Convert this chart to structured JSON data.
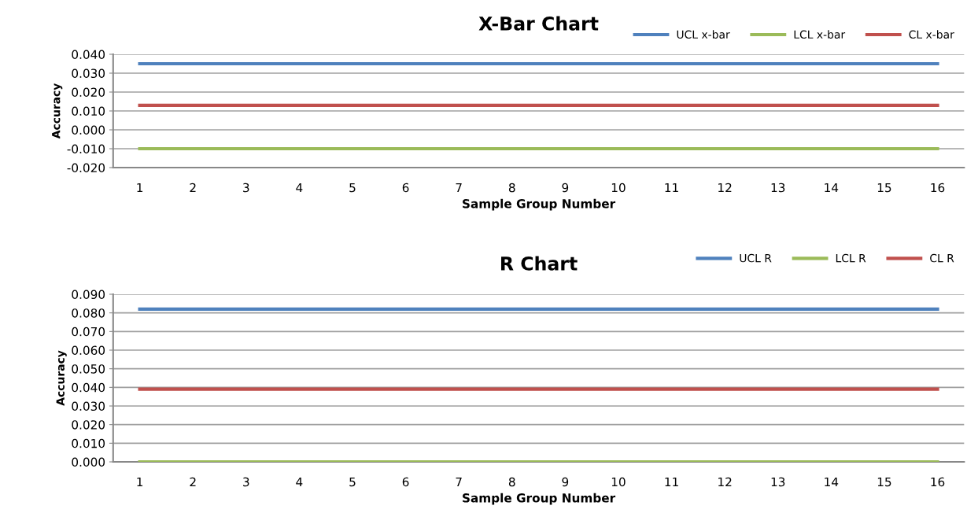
{
  "chart_data": [
    {
      "type": "line",
      "title": "X-Bar Chart",
      "xlabel": "Sample Group Number",
      "ylabel": "Accuracy",
      "categories": [
        "1",
        "2",
        "3",
        "4",
        "5",
        "6",
        "7",
        "8",
        "9",
        "10",
        "11",
        "12",
        "13",
        "14",
        "15",
        "16"
      ],
      "series": [
        {
          "name": "UCL x-bar",
          "color": "#4f81bd",
          "values": [
            0.035,
            0.035,
            0.035,
            0.035,
            0.035,
            0.035,
            0.035,
            0.035,
            0.035,
            0.035,
            0.035,
            0.035,
            0.035,
            0.035,
            0.035,
            0.035
          ]
        },
        {
          "name": "LCL x-bar",
          "color": "#9bbb59",
          "values": [
            -0.01,
            -0.01,
            -0.01,
            -0.01,
            -0.01,
            -0.01,
            -0.01,
            -0.01,
            -0.01,
            -0.01,
            -0.01,
            -0.01,
            -0.01,
            -0.01,
            -0.01,
            -0.01
          ]
        },
        {
          "name": "CL x-bar",
          "color": "#c0504d",
          "values": [
            0.013,
            0.013,
            0.013,
            0.013,
            0.013,
            0.013,
            0.013,
            0.013,
            0.013,
            0.013,
            0.013,
            0.013,
            0.013,
            0.013,
            0.013,
            0.013
          ]
        }
      ],
      "ylim": [
        -0.02,
        0.04
      ],
      "yticks": [
        {
          "value": -0.02,
          "label": "-0.020"
        },
        {
          "value": -0.01,
          "label": "-0.010"
        },
        {
          "value": 0,
          "label": "0.000"
        },
        {
          "value": 0.01,
          "label": "0.010"
        },
        {
          "value": 0.02,
          "label": "0.020"
        },
        {
          "value": 0.03,
          "label": "0.030"
        },
        {
          "value": 0.04,
          "label": "0.040"
        }
      ],
      "grid": "y",
      "legend": "top right",
      "marker": "none",
      "line_style": "solid"
    },
    {
      "type": "line",
      "title": "R Chart",
      "xlabel": "Sample Group Number",
      "ylabel": "Accuracy",
      "categories": [
        "1",
        "2",
        "3",
        "4",
        "5",
        "6",
        "7",
        "8",
        "9",
        "10",
        "11",
        "12",
        "13",
        "14",
        "15",
        "16"
      ],
      "series": [
        {
          "name": "UCL R",
          "color": "#4f81bd",
          "values": [
            0.082,
            0.082,
            0.082,
            0.082,
            0.082,
            0.082,
            0.082,
            0.082,
            0.082,
            0.082,
            0.082,
            0.082,
            0.082,
            0.082,
            0.082,
            0.082
          ]
        },
        {
          "name": "LCL R",
          "color": "#9bbb59",
          "values": [
            0,
            0,
            0,
            0,
            0,
            0,
            0,
            0,
            0,
            0,
            0,
            0,
            0,
            0,
            0,
            0
          ]
        },
        {
          "name": "CL R",
          "color": "#c0504d",
          "values": [
            0.039,
            0.039,
            0.039,
            0.039,
            0.039,
            0.039,
            0.039,
            0.039,
            0.039,
            0.039,
            0.039,
            0.039,
            0.039,
            0.039,
            0.039,
            0.039
          ]
        }
      ],
      "ylim": [
        0,
        0.09
      ],
      "yticks": [
        {
          "value": 0,
          "label": "0.000"
        },
        {
          "value": 0.01,
          "label": "0.010"
        },
        {
          "value": 0.02,
          "label": "0.020"
        },
        {
          "value": 0.03,
          "label": "0.030"
        },
        {
          "value": 0.04,
          "label": "0.040"
        },
        {
          "value": 0.05,
          "label": "0.050"
        },
        {
          "value": 0.06,
          "label": "0.060"
        },
        {
          "value": 0.07,
          "label": "0.070"
        },
        {
          "value": 0.08,
          "label": "0.080"
        },
        {
          "value": 0.09,
          "label": "0.090"
        }
      ],
      "grid": "y",
      "legend": "top right",
      "marker": "none",
      "line_style": "solid"
    }
  ]
}
